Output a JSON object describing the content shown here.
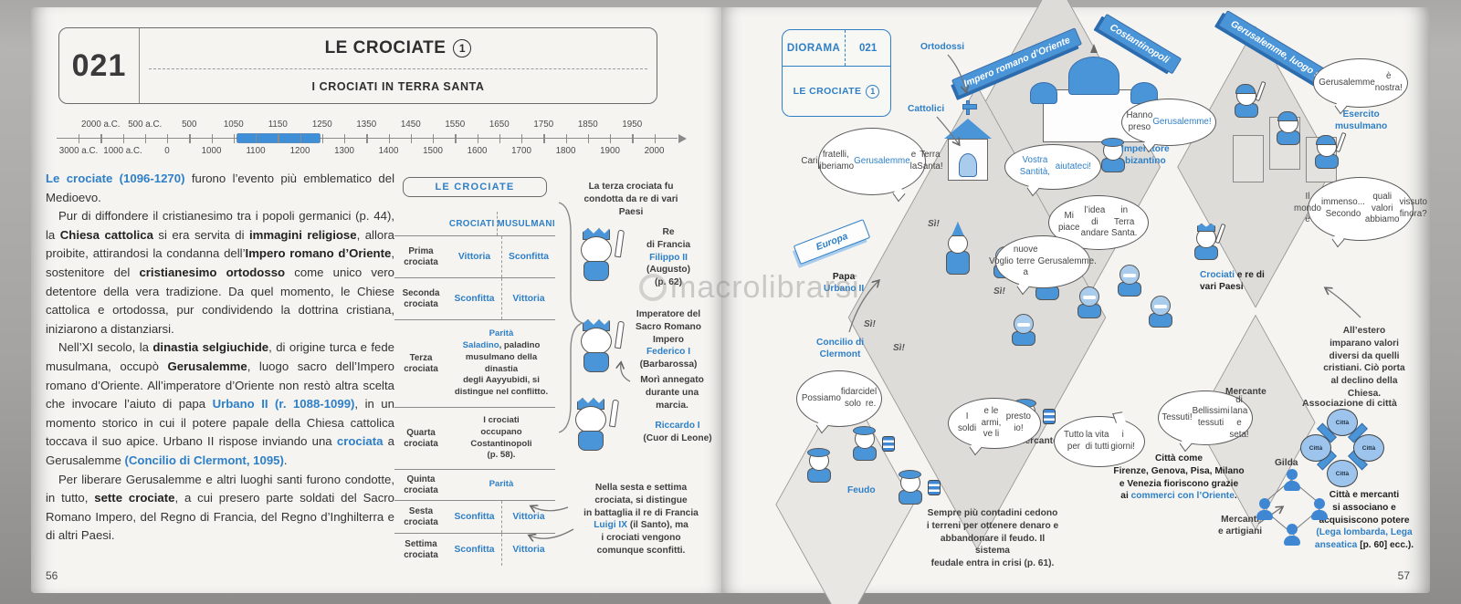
{
  "colors": {
    "accent_blue": "#2e7fc6",
    "timeline_highlight": "#3e8ed8",
    "illustration_blue": "#4a94d8",
    "illustration_light_blue": "#a9cbec"
  },
  "watermark": {
    "text": "macrolibrarsi"
  },
  "left_page": {
    "page_number": "56",
    "header": {
      "number": "021",
      "title": "LE CROCIATE",
      "badge": "1",
      "subtitle": "I CROCIATI IN TERRA SANTA"
    },
    "timeline": {
      "top_labels": [
        "2000 a.C.",
        "500 a.C.",
        "500",
        "1050",
        "1150",
        "1250",
        "1350",
        "1450",
        "1550",
        "1650",
        "1750",
        "1850",
        "1950"
      ],
      "bottom_labels": [
        "3000 a.C.",
        "1000 a.C.",
        "0",
        "1000",
        "1100",
        "1200",
        "1300",
        "1400",
        "1500",
        "1600",
        "1700",
        "1800",
        "1900",
        "2000"
      ],
      "highlight": {
        "from": "1100",
        "to": "1270"
      }
    },
    "article": {
      "p1": [
        {
          "t": "Le crociate (1096-1270)",
          "s": "bb"
        },
        {
          "t": " furono l’evento più emblematico del Medioevo."
        }
      ],
      "p2": [
        {
          "t": "Pur di diffondere il cristianesimo tra i popoli germanici (p. 44), la "
        },
        {
          "t": "Chiesa cattolica",
          "s": "b"
        },
        {
          "t": " si era servita di "
        },
        {
          "t": "immagini religiose",
          "s": "b"
        },
        {
          "t": ", allora proibite, attirandosi la condanna dell’"
        },
        {
          "t": "Impero romano d’Oriente",
          "s": "b"
        },
        {
          "t": ", sostenitore del "
        },
        {
          "t": "cristianesimo ortodosso",
          "s": "b"
        },
        {
          "t": " come unico vero detentore della vera tradizione. Da quel momento, le Chiese cattolica e ortodossa, pur condividendo la dottrina cristiana, iniziarono a distanziarsi."
        }
      ],
      "p3": [
        {
          "t": "Nell’XI secolo, la "
        },
        {
          "t": "dinastia selgiuchide",
          "s": "b"
        },
        {
          "t": ", di origine turca e fede musulmana, occupò "
        },
        {
          "t": "Gerusalemme",
          "s": "b"
        },
        {
          "t": ", luogo sacro dell’Impero romano d’Oriente. All’imperatore d’Oriente non restò altra scelta che invocare l’aiuto di papa "
        },
        {
          "t": "Urbano II (r. 1088-1099)",
          "s": "bb"
        },
        {
          "t": ", in un momento storico in cui il potere papale della Chiesa cattolica toccava il suo apice. Urbano II rispose inviando una "
        },
        {
          "t": "crociata",
          "s": "bb"
        },
        {
          "t": " a Gerusalemme "
        },
        {
          "t": "(Concilio di Clermont, 1095)",
          "s": "bb"
        },
        {
          "t": "."
        }
      ],
      "p4": [
        {
          "t": "Per liberare Gerusalemme e altri luoghi santi furono condotte, in tutto, "
        },
        {
          "t": "sette crociate",
          "s": "b"
        },
        {
          "t": ", a cui presero parte soldati del Sacro Romano Impero, del Regno di Francia, del Regno d’Inghilterra e di altri Paesi."
        }
      ]
    },
    "table": {
      "title": "LE CROCIATE",
      "col1": "CROCIATI",
      "col2": "MUSULMANI",
      "rows": [
        {
          "label": "Prima crociata",
          "c1": "Vittoria",
          "c2": "Sconfitta"
        },
        {
          "label": "Seconda crociata",
          "c1": "Sconfitta",
          "c2": "Vittoria"
        },
        {
          "label": "Terza crociata",
          "merged": [
            {
              "t": "Parità",
              "s": "bb"
            },
            {
              "t": "\n"
            },
            {
              "t": "Saladino",
              "s": "bb"
            },
            {
              "t": ", paladino\nmusulmano della dinastia\ndegli Aayyubidi, si\ndistingue nel conflitto."
            }
          ]
        },
        {
          "label": "Quarta crociata",
          "merged": [
            {
              "t": "I crociati\noccupano\nCostantinopoli\n(p. 58)."
            }
          ]
        },
        {
          "label": "Quinta crociata",
          "merged": [
            {
              "t": "Parità",
              "s": "bb"
            }
          ]
        },
        {
          "label": "Sesta crociata",
          "c1": "Sconfitta",
          "c2": "Vittoria"
        },
        {
          "label": "Settima crociata",
          "c1": "Sconfitta",
          "c2": "Vittoria"
        }
      ]
    },
    "notes": {
      "third_crusade": "La terza crociata fu condotta da re di vari Paesi",
      "king1": [
        {
          "t": "Re\ndi Francia\n"
        },
        {
          "t": "Filippo II",
          "s": "bb"
        },
        {
          "t": "\n(Augusto)\n(p. 62)"
        }
      ],
      "king2": [
        {
          "t": "Imperatore del\nSacro Romano\nImpero\n"
        },
        {
          "t": "Federico I",
          "s": "bb"
        },
        {
          "t": "\n(Barbarossa)"
        }
      ],
      "drowned": "Morì annegato\ndurante una\nmarcia.",
      "king3": [
        {
          "t": "Riccardo I",
          "s": "bb"
        },
        {
          "t": "\n(Cuor di Leone)"
        }
      ],
      "sixth": [
        {
          "t": "Nella sesta e settima\ncrociata, si distingue\nin battaglia il re di Francia\n"
        },
        {
          "t": "Luigi IX",
          "s": "bb"
        },
        {
          "t": " (il Santo), ma\ni crociati vengono\ncomunque sconfitti."
        }
      ]
    }
  },
  "right_page": {
    "page_number": "57",
    "header": {
      "label": "DIORAMA",
      "number": "021",
      "title": "LE CROCIATE",
      "badge": "1"
    },
    "signs": {
      "impero": "Impero romano d’Oriente",
      "costantinopoli": "Costantinopoli",
      "gerusalemme": "Gerusalemme, luogo santo",
      "europa": "Europa"
    },
    "labels": {
      "ortodossi": "Ortodossi",
      "cattolici": "Cattolici",
      "imperatore": "Imperatore\nbizantino",
      "esercito": "Esercito\nmusulmano",
      "crociati": [
        {
          "t": "Crociati",
          "s": "bb"
        },
        {
          "t": " e re di\nvari Paesi",
          "s": "b"
        }
      ],
      "papa": [
        {
          "t": "Papa",
          "s": "b"
        },
        {
          "t": "\n"
        },
        {
          "t": "Urbano II",
          "s": "bb"
        }
      ],
      "concilio": "Concilio di\nClermont",
      "mercante_left": "Mercante",
      "mercante_right": "Mercante",
      "feudo": "Feudo",
      "gilda": "Gilda",
      "mercanti_artigiani": "Mercanti\ne artigiani",
      "associazione": "Associazione di città",
      "citta_node": "Città",
      "si": "Sì!"
    },
    "bubbles": {
      "nostra": [
        {
          "t": "Gerusalemme\nè nostra!"
        }
      ],
      "hanno_preso": [
        {
          "t": "Hanno preso\n"
        },
        {
          "t": "Gerusalemme!",
          "s": "bt"
        }
      ],
      "cari_fratelli": [
        {
          "t": "Cari\nfratelli, liberiamo\n"
        },
        {
          "t": "Gerusalemme",
          "s": "bt"
        },
        {
          "t": " e la\nTerra Santa!"
        }
      ],
      "vostra_santita": [
        {
          "t": "Vostra Santità,\naiutateci!",
          "s": "bt"
        }
      ],
      "mi_piace": [
        {
          "t": "Mi piace\nl’idea di andare\nin Terra Santa."
        }
      ],
      "mondo": [
        {
          "t": "Il mondo è\nimmenso... Secondo\nquali valori abbiamo\nvissuto finora?"
        }
      ],
      "voglio": [
        {
          "t": "Voglio\nnuove terre a\nGerusalemme."
        }
      ],
      "possiamo": [
        {
          "t": "Possiamo\nfidarci solo\ndel re."
        }
      ],
      "soldi": [
        {
          "t": "I soldi\ne le armi, ve li\npresto io!"
        }
      ],
      "tutto": [
        {
          "t": "Tutto per\nla vita di tutti\ni giorni!"
        }
      ],
      "tessuti": [
        {
          "t": "Tessuti!\nBellissimi tessuti\ndi lana e seta!"
        }
      ]
    },
    "captions": {
      "estero": "All’estero\nimparano valori\ndiversi da quelli\ncristiani. Ciò porta\nal declino della\nChiesa.",
      "citta_come": [
        {
          "t": "Città come\nFirenze, Genova, Pisa, Milano\ne Venezia fioriscono grazie\nai ",
          "s": "b"
        },
        {
          "t": "commerci con l’Oriente",
          "s": "bb"
        },
        {
          "t": ".",
          "s": "b"
        }
      ],
      "contadini": "Sempre più contadini cedono\ni terreni per ottenere denaro e\nabbandonare il feudo. Il sistema\nfeudale entra in crisi (p. 61).",
      "citta_mercanti": [
        {
          "t": "Città e mercanti\nsi associano e\nacquisiscono potere\n",
          "s": "b"
        },
        {
          "t": "(Lega lombarda, Lega\nanseatica",
          "s": "bb"
        },
        {
          "t": " [p. 60] ecc.).",
          "s": "b"
        }
      ]
    }
  }
}
